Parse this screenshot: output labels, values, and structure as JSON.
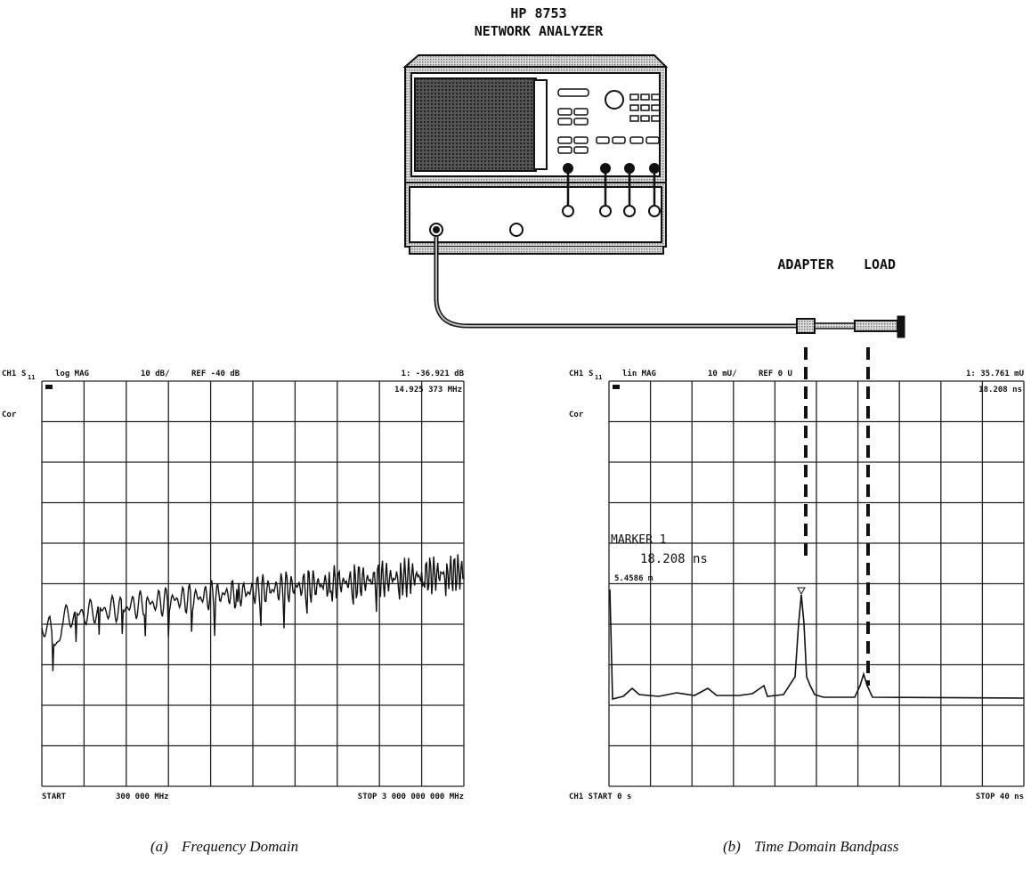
{
  "analyzer": {
    "model": "HP 8753",
    "name": "NETWORK ANALYZER"
  },
  "labels": {
    "adapter": "ADAPTER",
    "load": "LOAD"
  },
  "panels": [
    {
      "channel": "CH1",
      "param": "S",
      "param_sub": "11",
      "format": "log MAG",
      "scale": "10 dB/",
      "reference": "REF -40 dB",
      "marker_value": "1: -36.921 dB",
      "marker_position": "14.925 373 MHz",
      "correction": "Cor",
      "start_label": "START",
      "start": "300 000 MHz",
      "stop": "STOP 3 000 000 000 MHz",
      "caption_letter": "(a)",
      "caption": "Frequency Domain"
    },
    {
      "channel": "CH1",
      "param": "S",
      "param_sub": "11",
      "format": "lin MAG",
      "scale": "10 mU/",
      "reference": "REF 0 U",
      "marker_value": "1: 35.761 mU",
      "marker_position": "18.208 ns",
      "correction": "Cor",
      "marker_box": {
        "title": "MARKER 1",
        "time": "18.208 ns",
        "distance": "5.4586 m"
      },
      "start_label": "CH1 START 0 s",
      "stop": "STOP 40 ns",
      "caption_letter": "(b)",
      "caption": "Time Domain Bandpass"
    }
  ]
}
